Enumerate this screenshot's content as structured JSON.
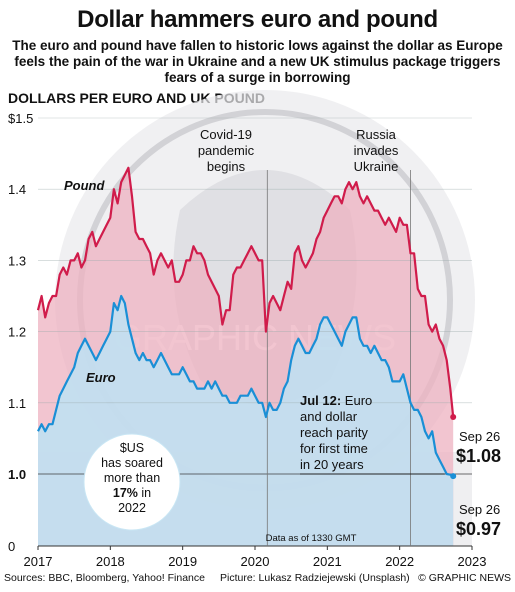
{
  "title": "Dollar hammers euro and pound",
  "subtitle": "The euro and pound have fallen to historic lows against the dollar as Europe feels the pain of the war in Ukraine and a new UK stimulus package triggers fears of a surge in borrowing",
  "units_label": "DOLLARS PER EURO AND UK POUND",
  "colors": {
    "pound": "#d01c4b",
    "pound_fill": "#eeb1c0",
    "euro": "#1a8fd6",
    "euro_fill": "#bde2f3"
  },
  "chart_data": {
    "type": "line",
    "ylim": [
      0,
      1.5
    ],
    "xlim": [
      2017,
      2023
    ],
    "x_ticks": [
      "2017",
      "2018",
      "2019",
      "2020",
      "2021",
      "2022",
      "2023"
    ],
    "y_ticks": [
      {
        "value": 0,
        "label": "0"
      },
      {
        "value": 1.0,
        "label": "1.0"
      },
      {
        "value": 1.1,
        "label": "1.1"
      },
      {
        "value": 1.2,
        "label": "1.2"
      },
      {
        "value": 1.3,
        "label": "1.3"
      },
      {
        "value": 1.4,
        "label": "1.4"
      },
      {
        "value": 1.5,
        "label": "$1.5"
      }
    ],
    "series": [
      {
        "name": "Pound",
        "x": [
          2017.0,
          2017.05,
          2017.1,
          2017.15,
          2017.2,
          2017.25,
          2017.3,
          2017.35,
          2017.4,
          2017.45,
          2017.5,
          2017.55,
          2017.6,
          2017.65,
          2017.7,
          2017.75,
          2017.8,
          2017.85,
          2017.9,
          2017.95,
          2018.0,
          2018.05,
          2018.1,
          2018.15,
          2018.2,
          2018.25,
          2018.3,
          2018.35,
          2018.4,
          2018.45,
          2018.5,
          2018.55,
          2018.6,
          2018.65,
          2018.7,
          2018.75,
          2018.8,
          2018.85,
          2018.9,
          2018.95,
          2019.0,
          2019.05,
          2019.1,
          2019.15,
          2019.2,
          2019.25,
          2019.3,
          2019.35,
          2019.4,
          2019.45,
          2019.5,
          2019.55,
          2019.6,
          2019.65,
          2019.7,
          2019.75,
          2019.8,
          2019.85,
          2019.9,
          2019.95,
          2020.0,
          2020.05,
          2020.1,
          2020.15,
          2020.2,
          2020.25,
          2020.3,
          2020.35,
          2020.4,
          2020.45,
          2020.5,
          2020.55,
          2020.6,
          2020.65,
          2020.7,
          2020.75,
          2020.8,
          2020.85,
          2020.9,
          2020.95,
          2021.0,
          2021.05,
          2021.1,
          2021.15,
          2021.2,
          2021.25,
          2021.3,
          2021.35,
          2021.4,
          2021.45,
          2021.5,
          2021.55,
          2021.6,
          2021.65,
          2021.7,
          2021.75,
          2021.8,
          2021.85,
          2021.9,
          2021.95,
          2022.0,
          2022.05,
          2022.1,
          2022.15,
          2022.2,
          2022.25,
          2022.3,
          2022.35,
          2022.4,
          2022.45,
          2022.5,
          2022.55,
          2022.6,
          2022.65,
          2022.7,
          2022.74
        ],
        "values": [
          1.23,
          1.25,
          1.22,
          1.24,
          1.25,
          1.25,
          1.28,
          1.29,
          1.28,
          1.3,
          1.3,
          1.31,
          1.29,
          1.3,
          1.33,
          1.34,
          1.32,
          1.33,
          1.34,
          1.35,
          1.36,
          1.4,
          1.38,
          1.41,
          1.42,
          1.43,
          1.39,
          1.34,
          1.33,
          1.33,
          1.32,
          1.31,
          1.28,
          1.3,
          1.31,
          1.3,
          1.29,
          1.3,
          1.27,
          1.27,
          1.28,
          1.3,
          1.3,
          1.32,
          1.31,
          1.31,
          1.3,
          1.28,
          1.27,
          1.26,
          1.25,
          1.21,
          1.23,
          1.23,
          1.28,
          1.29,
          1.29,
          1.3,
          1.31,
          1.32,
          1.31,
          1.3,
          1.3,
          1.2,
          1.24,
          1.25,
          1.24,
          1.23,
          1.25,
          1.27,
          1.26,
          1.31,
          1.32,
          1.3,
          1.29,
          1.3,
          1.31,
          1.33,
          1.34,
          1.36,
          1.37,
          1.38,
          1.39,
          1.39,
          1.38,
          1.4,
          1.41,
          1.4,
          1.41,
          1.39,
          1.38,
          1.39,
          1.38,
          1.37,
          1.37,
          1.36,
          1.35,
          1.36,
          1.35,
          1.34,
          1.36,
          1.35,
          1.35,
          1.31,
          1.31,
          1.26,
          1.25,
          1.25,
          1.21,
          1.2,
          1.21,
          1.19,
          1.18,
          1.16,
          1.12,
          1.08
        ],
        "end_label": "Sep 26",
        "end_value": "$1.08"
      },
      {
        "name": "Euro",
        "x": [
          2017.0,
          2017.05,
          2017.1,
          2017.15,
          2017.2,
          2017.25,
          2017.3,
          2017.35,
          2017.4,
          2017.45,
          2017.5,
          2017.55,
          2017.6,
          2017.65,
          2017.7,
          2017.75,
          2017.8,
          2017.85,
          2017.9,
          2017.95,
          2018.0,
          2018.05,
          2018.1,
          2018.15,
          2018.2,
          2018.25,
          2018.3,
          2018.35,
          2018.4,
          2018.45,
          2018.5,
          2018.55,
          2018.6,
          2018.65,
          2018.7,
          2018.75,
          2018.8,
          2018.85,
          2018.9,
          2018.95,
          2019.0,
          2019.05,
          2019.1,
          2019.15,
          2019.2,
          2019.25,
          2019.3,
          2019.35,
          2019.4,
          2019.45,
          2019.5,
          2019.55,
          2019.6,
          2019.65,
          2019.7,
          2019.75,
          2019.8,
          2019.85,
          2019.9,
          2019.95,
          2020.0,
          2020.05,
          2020.1,
          2020.15,
          2020.2,
          2020.25,
          2020.3,
          2020.35,
          2020.4,
          2020.45,
          2020.5,
          2020.55,
          2020.6,
          2020.65,
          2020.7,
          2020.75,
          2020.8,
          2020.85,
          2020.9,
          2020.95,
          2021.0,
          2021.05,
          2021.1,
          2021.15,
          2021.2,
          2021.25,
          2021.3,
          2021.35,
          2021.4,
          2021.45,
          2021.5,
          2021.55,
          2021.6,
          2021.65,
          2021.7,
          2021.75,
          2021.8,
          2021.85,
          2021.9,
          2021.95,
          2022.0,
          2022.05,
          2022.1,
          2022.15,
          2022.2,
          2022.25,
          2022.3,
          2022.35,
          2022.4,
          2022.45,
          2022.5,
          2022.55,
          2022.6,
          2022.65,
          2022.7,
          2022.74
        ],
        "values": [
          1.06,
          1.07,
          1.06,
          1.07,
          1.07,
          1.09,
          1.11,
          1.12,
          1.13,
          1.14,
          1.15,
          1.17,
          1.18,
          1.19,
          1.18,
          1.17,
          1.16,
          1.17,
          1.18,
          1.19,
          1.2,
          1.24,
          1.23,
          1.25,
          1.24,
          1.21,
          1.19,
          1.17,
          1.16,
          1.17,
          1.16,
          1.16,
          1.15,
          1.16,
          1.17,
          1.16,
          1.15,
          1.14,
          1.14,
          1.14,
          1.15,
          1.14,
          1.13,
          1.13,
          1.12,
          1.12,
          1.12,
          1.13,
          1.12,
          1.13,
          1.12,
          1.11,
          1.11,
          1.1,
          1.1,
          1.1,
          1.11,
          1.11,
          1.11,
          1.12,
          1.11,
          1.1,
          1.1,
          1.08,
          1.1,
          1.09,
          1.09,
          1.1,
          1.12,
          1.13,
          1.16,
          1.18,
          1.19,
          1.18,
          1.17,
          1.17,
          1.18,
          1.19,
          1.21,
          1.22,
          1.22,
          1.21,
          1.2,
          1.19,
          1.18,
          1.2,
          1.21,
          1.22,
          1.22,
          1.19,
          1.18,
          1.18,
          1.17,
          1.18,
          1.17,
          1.16,
          1.16,
          1.15,
          1.13,
          1.13,
          1.13,
          1.14,
          1.12,
          1.1,
          1.09,
          1.09,
          1.08,
          1.06,
          1.05,
          1.06,
          1.03,
          1.02,
          1.01,
          1.0,
          0.99,
          0.97
        ],
        "end_label": "Sep 26",
        "end_value": "$0.97"
      }
    ],
    "annotations": {
      "covid": {
        "x": 2020.17,
        "lines": [
          "Covid-19",
          "pandemic",
          "begins"
        ]
      },
      "russia": {
        "x": 2022.15,
        "lines": [
          "Russia",
          "invades",
          "Ukraine"
        ]
      },
      "parity": {
        "x": 2022.54,
        "value": 1.0,
        "bold": "Jul 12:",
        "lines": [
          "Euro",
          "and dollar",
          "reach parity",
          "for first time",
          "in 20 years"
        ]
      },
      "circle": {
        "lines": [
          "$US",
          "has soared",
          "more than"
        ],
        "bold": "17%",
        "after_bold": " in",
        "last": "2022"
      },
      "data_note": "Data as of 1330 GMT"
    }
  },
  "footer": {
    "sources": "Sources: BBC, Bloomberg, Yahoo! Finance",
    "picture": "Picture: Lukasz Radziejewski (Unsplash)",
    "credit": "© GRAPHIC NEWS"
  }
}
